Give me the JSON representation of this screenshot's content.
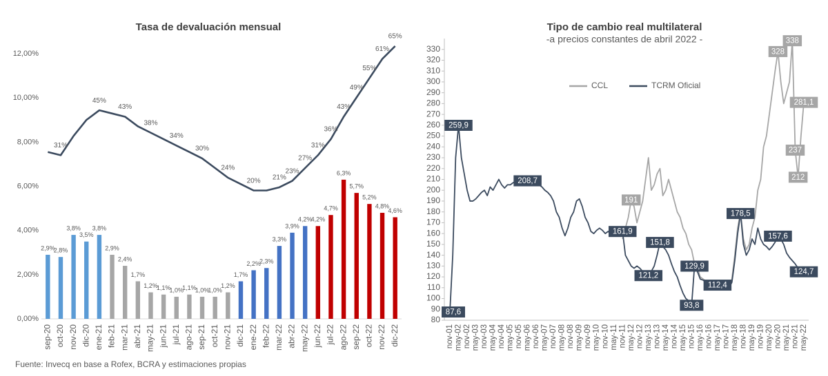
{
  "chart_data": [
    {
      "type": "combo",
      "title": "Tasa de devaluación mensual",
      "categories": [
        "sep-20",
        "oct-20",
        "nov-20",
        "dic-20",
        "ene-21",
        "feb-21",
        "mar-21",
        "abr-21",
        "may-21",
        "jun-21",
        "jul-21",
        "ago-21",
        "sep-21",
        "oct-21",
        "nov-21",
        "dic-21",
        "ene-22",
        "feb-22",
        "mar-22",
        "abr-22",
        "may-22",
        "jun-22",
        "jul-22",
        "ago-22",
        "sep-22",
        "oct-22",
        "nov-22",
        "dic-22"
      ],
      "ylim": [
        0,
        13
      ],
      "yticks": [
        {
          "value": 0,
          "label": "0,00%"
        },
        {
          "value": 2,
          "label": "2,00%"
        },
        {
          "value": 4,
          "label": "4,00%"
        },
        {
          "value": 6,
          "label": "6,00%"
        },
        {
          "value": 8,
          "label": "8,00%"
        },
        {
          "value": 10,
          "label": "10,00%"
        },
        {
          "value": 12,
          "label": "12,00%"
        }
      ],
      "y2lim": [
        -20,
        69.5
      ],
      "series": [
        {
          "type": "bar",
          "colors": [
            "#5b9bd5",
            "#5b9bd5",
            "#5b9bd5",
            "#5b9bd5",
            "#5b9bd5",
            "#a6a6a6",
            "#a6a6a6",
            "#a6a6a6",
            "#a6a6a6",
            "#a6a6a6",
            "#a6a6a6",
            "#a6a6a6",
            "#a6a6a6",
            "#a6a6a6",
            "#a6a6a6",
            "#4472c4",
            "#4472c4",
            "#4472c4",
            "#4472c4",
            "#4472c4",
            "#4472c4",
            "#c00000",
            "#c00000",
            "#c00000",
            "#c00000",
            "#c00000",
            "#c00000",
            "#c00000"
          ],
          "values": [
            2.9,
            2.8,
            3.8,
            3.5,
            3.8,
            2.9,
            2.4,
            1.7,
            1.2,
            1.1,
            1.0,
            1.1,
            1.0,
            1.0,
            1.2,
            1.7,
            2.2,
            2.3,
            3.3,
            3.9,
            4.2,
            4.2,
            4.7,
            6.3,
            5.7,
            5.2,
            4.8,
            4.6
          ],
          "value_labels": [
            "2,9%",
            "2,8%",
            "3,8%",
            "3,5%",
            "3,8%",
            "2,9%",
            "2,4%",
            "1,7%",
            "1,2%",
            "1,1%",
            "1,0%",
            "1,1%",
            "1,0%",
            "1,0%",
            "1,2%",
            "1,7%",
            "2,2%",
            "2,3%",
            "3,3%",
            "3,9%",
            "4,2%",
            "4,2%",
            "4,7%",
            "6,3%",
            "5,7%",
            "5,2%",
            "4,8%",
            "4,6%"
          ]
        },
        {
          "type": "line",
          "axis": "y2",
          "color": "#3b4a5e",
          "values": [
            32,
            31,
            37,
            42,
            45,
            44,
            43,
            40,
            38,
            36,
            34,
            32,
            30,
            27,
            24,
            22,
            20,
            20,
            21,
            23,
            27,
            31,
            36,
            43,
            49,
            55,
            61,
            65
          ],
          "value_labels": [
            null,
            "31%",
            null,
            null,
            "45%",
            null,
            "43%",
            null,
            "38%",
            null,
            "34%",
            null,
            "30%",
            null,
            "24%",
            null,
            "20%",
            null,
            "21%",
            "23%",
            "27%",
            "31%",
            "36%",
            "43%",
            "49%",
            "55%",
            "61%",
            "65%"
          ]
        }
      ]
    },
    {
      "type": "line",
      "title": "Tipo de cambio real multilateral",
      "subtitle": "-a precios constantes de abril 2022 -",
      "x": [
        "nov-01",
        null,
        null,
        "may-02",
        null,
        null,
        "nov-02",
        null,
        null,
        "may-03",
        null,
        null,
        "nov-03",
        null,
        null,
        "may-04",
        null,
        null,
        "nov-04",
        null,
        null,
        "may-05",
        null,
        null,
        "nov-05",
        null,
        null,
        "may-06",
        null,
        null,
        "nov-06",
        null,
        null,
        "may-07",
        null,
        null,
        "nov-07",
        null,
        null,
        "may-08",
        null,
        null,
        "nov-08",
        null,
        null,
        "may-09",
        null,
        null,
        "nov-09",
        null,
        null,
        "may-10",
        null,
        null,
        "nov-10",
        null,
        null,
        "may-11",
        null,
        null,
        "nov-11",
        null,
        null,
        "may-12",
        null,
        null,
        "nov-12",
        null,
        null,
        "may-13",
        null,
        null,
        "nov-13",
        null,
        null,
        "may-14",
        null,
        null,
        "nov-14",
        null,
        null,
        "may-15",
        null,
        null,
        "nov-15",
        null,
        null,
        "may-16",
        null,
        null,
        "nov-16",
        null,
        null,
        "may-17",
        null,
        null,
        "nov-17",
        null,
        null,
        "may-18",
        null,
        null,
        "nov-18",
        null,
        null,
        "may-19",
        null,
        null,
        "nov-19",
        null,
        null,
        "may-20",
        null,
        null,
        "nov-20",
        null,
        null,
        "may-21",
        null,
        null,
        "nov-21",
        null,
        null,
        "may-22"
      ],
      "ylim": [
        80,
        340
      ],
      "yticks": [
        80,
        90,
        100,
        110,
        120,
        130,
        140,
        150,
        160,
        170,
        180,
        190,
        200,
        210,
        220,
        230,
        240,
        250,
        260,
        270,
        280,
        290,
        300,
        310,
        320,
        330
      ],
      "legend": "top",
      "series": [
        {
          "name": "CCL",
          "color": "#a6a6a6",
          "values": [
            null,
            null,
            null,
            null,
            null,
            null,
            null,
            null,
            null,
            null,
            null,
            null,
            null,
            null,
            null,
            null,
            null,
            null,
            null,
            null,
            null,
            null,
            null,
            null,
            null,
            null,
            null,
            null,
            null,
            null,
            null,
            null,
            null,
            null,
            null,
            null,
            null,
            null,
            null,
            null,
            null,
            null,
            null,
            null,
            null,
            null,
            null,
            null,
            null,
            null,
            null,
            null,
            null,
            null,
            null,
            null,
            null,
            null,
            null,
            null,
            155,
            165,
            175,
            191,
            185,
            170,
            180,
            190,
            210,
            230,
            200,
            205,
            215,
            220,
            195,
            200,
            210,
            200,
            190,
            180,
            175,
            165,
            160,
            150,
            145,
            132,
            128,
            120,
            118,
            116,
            116,
            113,
            110,
            111,
            111,
            113,
            110,
            112,
            118,
            140,
            165,
            180,
            155,
            145,
            150,
            165,
            175,
            200,
            210,
            240,
            250,
            270,
            290,
            310,
            328,
            300,
            280,
            290,
            300,
            338,
            237,
            212,
            250,
            281.1
          ],
          "value_labels": [
            null,
            null,
            null,
            null,
            null,
            null,
            null,
            null,
            null,
            null,
            null,
            null,
            null,
            null,
            null,
            null,
            null,
            null,
            null,
            null,
            null,
            null,
            null,
            null,
            null,
            null,
            null,
            null,
            null,
            null,
            null,
            null,
            null,
            null,
            null,
            null,
            null,
            null,
            null,
            null,
            null,
            null,
            null,
            null,
            null,
            null,
            null,
            null,
            null,
            null,
            null,
            null,
            null,
            null,
            null,
            null,
            null,
            null,
            null,
            null,
            null,
            null,
            null,
            "191",
            null,
            null,
            null,
            null,
            null,
            null,
            null,
            null,
            null,
            null,
            null,
            null,
            null,
            null,
            null,
            null,
            null,
            null,
            null,
            null,
            null,
            null,
            null,
            null,
            null,
            null,
            null,
            null,
            null,
            null,
            null,
            null,
            null,
            null,
            null,
            null,
            null,
            null,
            null,
            null,
            null,
            null,
            null,
            null,
            null,
            null,
            null,
            null,
            null,
            null,
            "328",
            null,
            null,
            null,
            null,
            "338",
            "237",
            "212",
            null,
            "281,1"
          ]
        },
        {
          "name": "TCRM Oficial",
          "color": "#3b4a5e",
          "values": [
            87.6,
            140,
            230,
            259.9,
            230,
            215,
            200,
            190,
            190,
            192,
            195,
            198,
            200,
            195,
            203,
            200,
            205,
            210,
            205,
            202,
            205,
            205,
            207,
            208,
            210,
            210,
            208,
            208.7,
            210,
            208,
            207,
            205,
            203,
            200,
            198,
            195,
            190,
            180,
            175,
            165,
            158,
            165,
            175,
            180,
            190,
            192,
            185,
            175,
            170,
            162,
            160,
            163,
            165,
            163,
            160,
            162,
            160,
            158,
            160,
            158,
            161.9,
            140,
            135,
            130,
            128,
            130,
            128,
            125,
            122,
            121.2,
            125,
            130,
            140,
            151.8,
            148,
            145,
            140,
            132,
            125,
            120,
            112,
            105,
            100,
            98,
            93.8,
            129.9,
            125,
            118,
            117,
            115,
            115,
            112,
            108,
            112.4,
            110,
            112,
            108,
            110,
            115,
            135,
            160,
            178.5,
            150,
            140,
            145,
            155,
            150,
            165,
            155,
            150,
            148,
            145,
            148,
            152,
            157.6,
            155,
            150,
            142,
            138,
            135,
            132,
            128,
            125,
            124.7
          ],
          "value_labels": [
            "87,6",
            null,
            null,
            "259,9",
            null,
            null,
            null,
            null,
            null,
            null,
            null,
            null,
            null,
            null,
            null,
            null,
            null,
            null,
            null,
            null,
            null,
            null,
            null,
            null,
            null,
            null,
            null,
            "208,7",
            null,
            null,
            null,
            null,
            null,
            null,
            null,
            null,
            null,
            null,
            null,
            null,
            null,
            null,
            null,
            null,
            null,
            null,
            null,
            null,
            null,
            null,
            null,
            null,
            null,
            null,
            null,
            null,
            null,
            null,
            null,
            null,
            "161,9",
            null,
            null,
            null,
            null,
            null,
            null,
            null,
            null,
            "121,2",
            null,
            null,
            null,
            "151,8",
            null,
            null,
            null,
            null,
            null,
            null,
            null,
            null,
            null,
            null,
            "93,8",
            "129,9",
            null,
            null,
            null,
            null,
            null,
            null,
            null,
            "112,4",
            null,
            null,
            null,
            null,
            null,
            null,
            null,
            "178,5",
            null,
            null,
            null,
            null,
            null,
            null,
            null,
            null,
            null,
            null,
            null,
            null,
            "157,6",
            null,
            null,
            null,
            null,
            null,
            null,
            null,
            null,
            "124,7"
          ]
        }
      ]
    }
  ],
  "source": "Fuente: Invecq en base a Rofex, BCRA y estimaciones propias"
}
